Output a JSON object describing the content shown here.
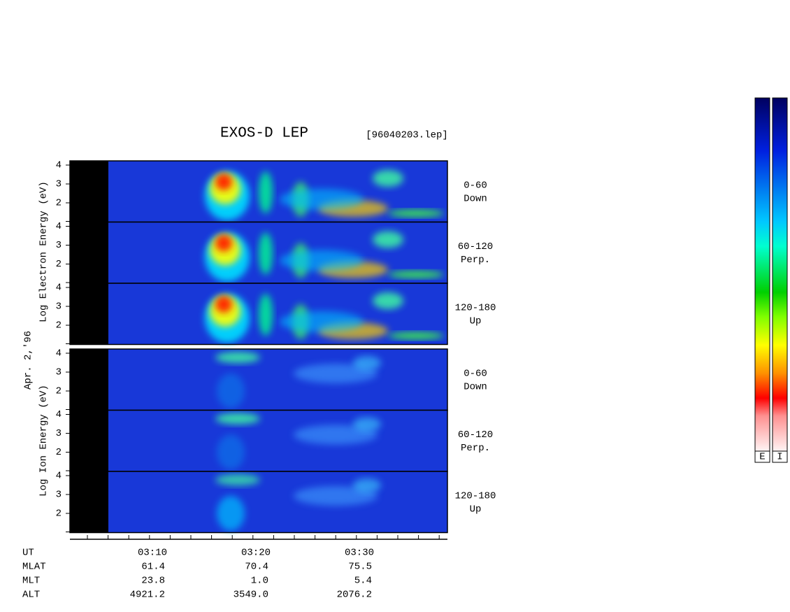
{
  "header": {
    "title": "EXOS-D LEP",
    "file": "[96040203.lep]",
    "date": "Apr. 2,'96"
  },
  "electron_panel": {
    "ylabel": "Log  Electron  Energy (eV)",
    "rows": [
      {
        "yticks": [
          "4",
          "3",
          "2"
        ],
        "pitch": "0-60",
        "direction": "Down"
      },
      {
        "yticks": [
          "4",
          "3",
          "2"
        ],
        "pitch": "60-120",
        "direction": "Perp."
      },
      {
        "yticks": [
          "4",
          "3",
          "2"
        ],
        "pitch": "120-180",
        "direction": "Up"
      }
    ]
  },
  "ion_panel": {
    "ylabel": "Log  Ion  Energy (eV)",
    "rows": [
      {
        "yticks": [
          "4",
          "3",
          "2"
        ],
        "pitch": "0-60",
        "direction": "Down"
      },
      {
        "yticks": [
          "4",
          "3",
          "2"
        ],
        "pitch": "60-120",
        "direction": "Perp."
      },
      {
        "yticks": [
          "4",
          "3",
          "2"
        ],
        "pitch": "120-180",
        "direction": "Up"
      }
    ]
  },
  "time_axis": {
    "ticks": [
      "03:10",
      "03:20",
      "03:30"
    ],
    "rows": [
      {
        "label": "UT"
      },
      {
        "label": "MLAT",
        "values": [
          "61.4",
          "70.4",
          "75.5"
        ]
      },
      {
        "label": "MLT",
        "values": [
          "23.8",
          "1.0",
          "5.4"
        ]
      },
      {
        "label": "ALT",
        "values": [
          "4921.2",
          "3549.0",
          "2076.2"
        ]
      }
    ]
  },
  "colorbars": {
    "labels": [
      "E",
      "I"
    ]
  }
}
